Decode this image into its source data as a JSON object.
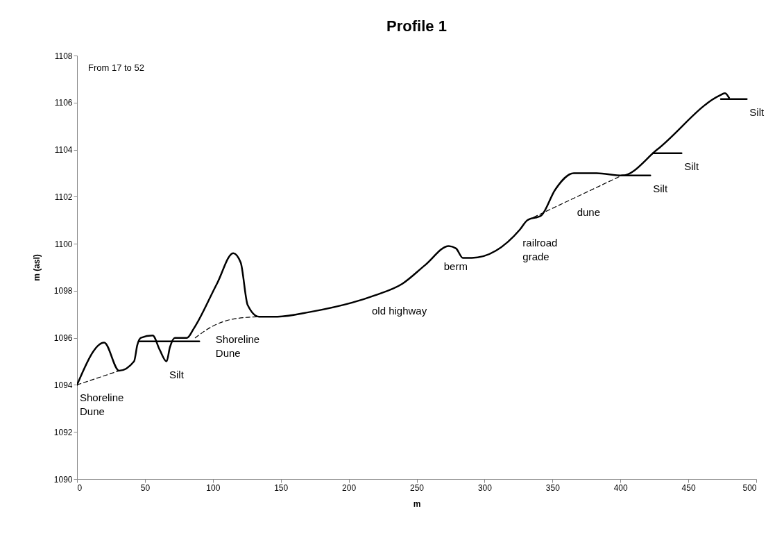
{
  "chart_data": {
    "type": "line",
    "title": "Profile 1",
    "xlabel": "m",
    "ylabel": "m (asl)",
    "xlim": [
      0,
      500
    ],
    "xticks": [
      0,
      50,
      100,
      150,
      200,
      250,
      300,
      350,
      400,
      450,
      500
    ],
    "ylim": [
      1090,
      1108
    ],
    "yticks": [
      1090,
      1092,
      1094,
      1096,
      1098,
      1100,
      1102,
      1104,
      1106,
      1108
    ],
    "grid": false,
    "marker": "none",
    "line_style": "solid",
    "series": [
      {
        "color": "#000000",
        "x": [
          0,
          20,
          31,
          42,
          44.4,
          47,
          55.7,
          60.8,
          65.9,
          68.4,
          72,
          81,
          86,
          103,
          115,
          120.5,
          125.6,
          134,
          147.6,
          171.6,
          219,
          239.5,
          256.4,
          273.7,
          279,
          284,
          290.6,
          326,
          331.5,
          341.7,
          352,
          365.7,
          382.5,
          401.4,
          427,
          473,
          477,
          480
        ],
        "values": [
          1094.0,
          1095.8,
          1094.6,
          1095.0,
          1095.7,
          1096.0,
          1096.1,
          1095.5,
          1095.0,
          1095.6,
          1096.0,
          1096.0,
          1096.4,
          1098.3,
          1099.6,
          1099.2,
          1097.4,
          1096.9,
          1096.9,
          1097.1,
          1097.8,
          1098.3,
          1099.1,
          1099.9,
          1099.8,
          1099.4,
          1099.4,
          1100.6,
          1101.0,
          1101.2,
          1102.3,
          1103.0,
          1103.0,
          1102.9,
          1104.0,
          1106.3,
          1106.4,
          1106.2
        ]
      },
      {
        "color": "#000000",
        "line_style": "dashed",
        "x": [
          0,
          31
        ],
        "values": [
          1094.0,
          1094.6
        ]
      },
      {
        "color": "#000000",
        "line_style": "dashed",
        "x": [
          87,
          100,
          115,
          134
        ],
        "values": [
          1096.0,
          1096.5,
          1096.8,
          1096.9
        ]
      },
      {
        "color": "#000000",
        "line_style": "dashed",
        "x": [
          331.5,
          401
        ],
        "values": [
          1101.0,
          1102.9
        ]
      },
      {
        "color": "#000000",
        "x": [
          45.5,
          90
        ],
        "values": [
          1095.85,
          1095.85
        ]
      },
      {
        "color": "#000000",
        "x": [
          401,
          422
        ],
        "values": [
          1102.9,
          1102.9
        ]
      },
      {
        "color": "#000000",
        "x": [
          424,
          445
        ],
        "values": [
          1103.85,
          1103.85
        ]
      },
      {
        "color": "#000000",
        "x": [
          474,
          493
        ],
        "values": [
          1106.15,
          1106.15
        ]
      }
    ],
    "annotations": [
      "From 17 to 52",
      {
        "text": "Shoreline\nDune",
        "x": 0,
        "y": 1094.0
      },
      {
        "text": "Silt",
        "x": 65.9,
        "y": 1095.0
      },
      {
        "text": "Shoreline\nDune",
        "x": 100,
        "y": 1096.5
      },
      {
        "text": "old highway",
        "x": 215,
        "y": 1097.7
      },
      {
        "text": "berm",
        "x": 268,
        "y": 1099.6
      },
      {
        "text": "railroad\ngrade",
        "x": 326,
        "y": 1100.6
      },
      {
        "text": "dune",
        "x": 366,
        "y": 1101.9
      },
      {
        "text": "Silt",
        "x": 422,
        "y": 1102.9
      },
      {
        "text": "Silt",
        "x": 445,
        "y": 1103.85
      },
      {
        "text": "Silt",
        "x": 493,
        "y": 1106.15
      }
    ]
  }
}
